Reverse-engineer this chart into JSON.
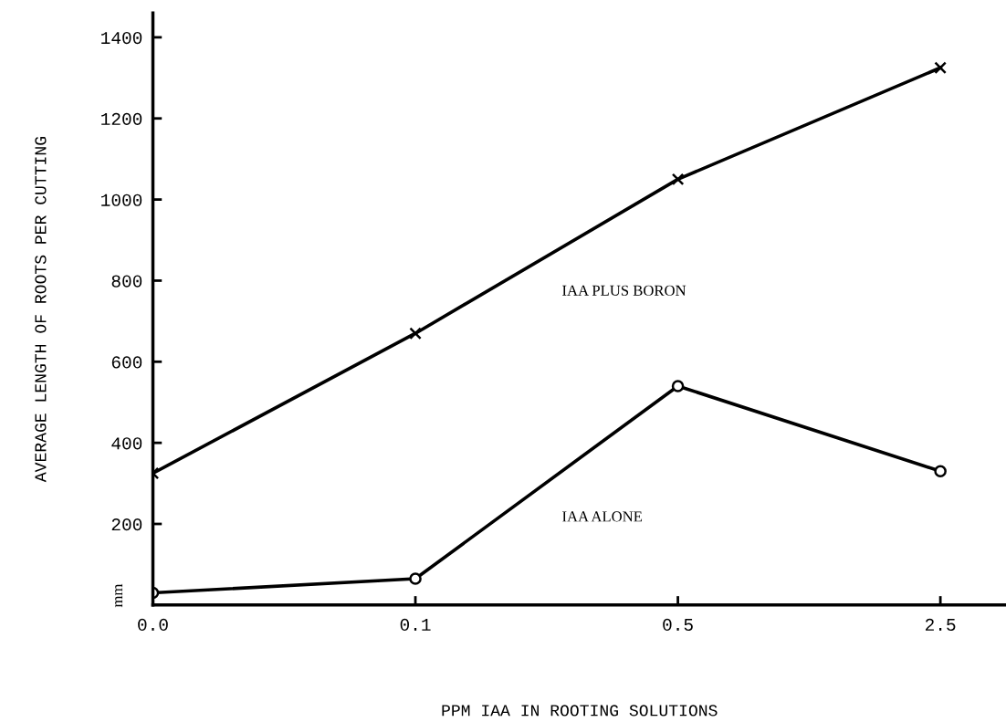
{
  "chart_data": {
    "type": "line",
    "xlabel": "PPM IAA IN ROOTING SOLUTIONS",
    "ylabel": "AVERAGE LENGTH OF ROOTS PER CUTTING",
    "categories": [
      "0.0",
      "0.1",
      "0.5",
      "2.5"
    ],
    "series": [
      {
        "name": "IAA PLUS BORON",
        "color": "#000000",
        "marker": "cross",
        "values": [
          325,
          670,
          1050,
          1325
        ]
      },
      {
        "name": "IAA ALONE",
        "color": "#000000",
        "marker": "circle",
        "values": [
          30,
          65,
          540,
          330
        ]
      }
    ],
    "ylim": [
      0,
      1460
    ],
    "yticks": [
      200,
      400,
      600,
      800,
      1000,
      1200,
      1400
    ],
    "annotations": [
      "mm"
    ],
    "grid": false,
    "legend": false
  }
}
